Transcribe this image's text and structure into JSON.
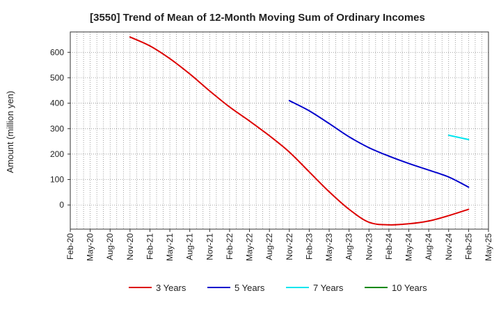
{
  "chart_data": {
    "type": "line",
    "title": "[3550]  Trend of Mean of 12-Month Moving Sum of Ordinary Incomes",
    "xlabel": "",
    "ylabel": "Amount (million yen)",
    "ylim": [
      -95,
      680
    ],
    "yticks": [
      0,
      100,
      200,
      300,
      400,
      500,
      600
    ],
    "x_start": "Feb-20",
    "x_tick_labels": [
      "Feb-20",
      "May-20",
      "Aug-20",
      "Nov-20",
      "Feb-21",
      "May-21",
      "Aug-21",
      "Nov-21",
      "Feb-22",
      "May-22",
      "Aug-22",
      "Nov-22",
      "Feb-23",
      "May-23",
      "Aug-23",
      "Nov-23",
      "Feb-24",
      "May-24",
      "Aug-24",
      "Nov-24",
      "Feb-25",
      "May-25"
    ],
    "grid": true,
    "legend_position": "bottom",
    "series": [
      {
        "name": "3 Years",
        "color": "#dd0000",
        "points": [
          {
            "m": 9,
            "v": 660
          },
          {
            "m": 12,
            "v": 625
          },
          {
            "m": 15,
            "v": 575
          },
          {
            "m": 18,
            "v": 515
          },
          {
            "m": 21,
            "v": 448
          },
          {
            "m": 24,
            "v": 385
          },
          {
            "m": 27,
            "v": 330
          },
          {
            "m": 30,
            "v": 272
          },
          {
            "m": 33,
            "v": 208
          },
          {
            "m": 36,
            "v": 130
          },
          {
            "m": 39,
            "v": 52
          },
          {
            "m": 42,
            "v": -17
          },
          {
            "m": 45,
            "v": -68
          },
          {
            "m": 48,
            "v": -78
          },
          {
            "m": 51,
            "v": -74
          },
          {
            "m": 54,
            "v": -63
          },
          {
            "m": 57,
            "v": -42
          },
          {
            "m": 60,
            "v": -17
          }
        ]
      },
      {
        "name": "5 Years",
        "color": "#0000cc",
        "points": [
          {
            "m": 33,
            "v": 410
          },
          {
            "m": 36,
            "v": 370
          },
          {
            "m": 39,
            "v": 320
          },
          {
            "m": 42,
            "v": 268
          },
          {
            "m": 45,
            "v": 225
          },
          {
            "m": 48,
            "v": 192
          },
          {
            "m": 51,
            "v": 163
          },
          {
            "m": 54,
            "v": 137
          },
          {
            "m": 57,
            "v": 110
          },
          {
            "m": 60,
            "v": 70
          }
        ]
      },
      {
        "name": "7 Years",
        "color": "#00e5ee",
        "points": [
          {
            "m": 57,
            "v": 274
          },
          {
            "m": 60,
            "v": 257
          }
        ]
      },
      {
        "name": "10 Years",
        "color": "#008800",
        "points": []
      }
    ]
  }
}
